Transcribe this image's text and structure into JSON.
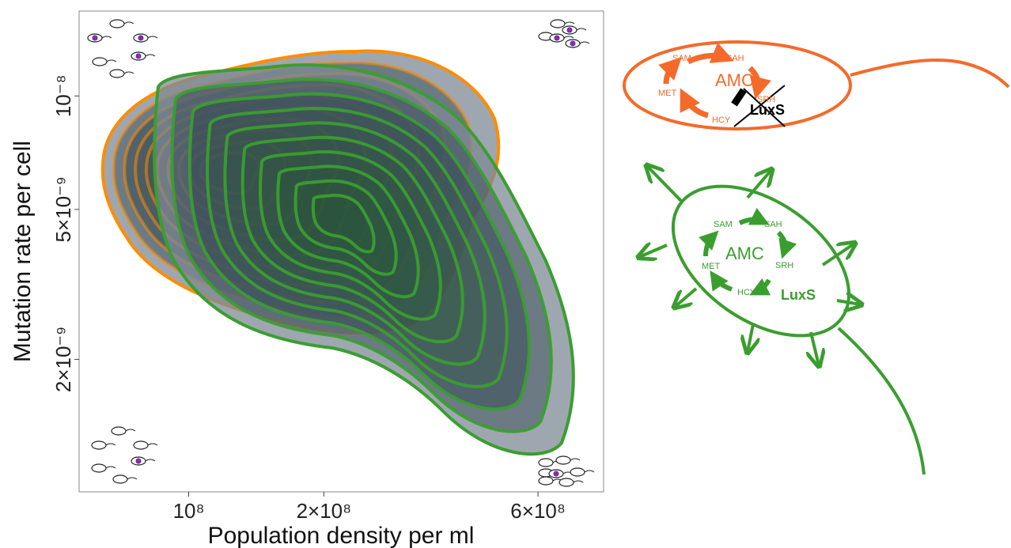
{
  "chart_data": {
    "type": "contour",
    "xlabel": "Population density per ml",
    "ylabel": "Mutation rate per cell",
    "xscale": "log",
    "yscale": "log",
    "xlim": [
      57000000.0,
      840000000.0
    ],
    "ylim": [
      8.9e-10,
      1.68e-08
    ],
    "xticks": [
      {
        "value": 100000000.0,
        "label": "10⁸"
      },
      {
        "value": 200000000.0,
        "label": "2×10⁸"
      },
      {
        "value": 600000000.0,
        "label": "6×10⁸"
      }
    ],
    "yticks": [
      {
        "value": 2e-09,
        "label": "2×10⁻⁹"
      },
      {
        "value": 5e-09,
        "label": "5×10⁻⁹"
      },
      {
        "value": 1e-08,
        "label": "10⁻⁸"
      }
    ],
    "colors": [
      "#ff8c00",
      "#3a9e2f"
    ]
  },
  "diagrams": [
    {
      "metabolites": [
        "SAM",
        "SAH",
        "SRH",
        "HCY",
        "MET"
      ],
      "cycle": "AMC",
      "enzyme": "LuxS",
      "color": "#f46a2b"
    },
    {
      "metabolites": [
        "SAM",
        "SAH",
        "SRH",
        "HCY",
        "MET"
      ],
      "cycle": "AMC",
      "enzyme": "LuxS",
      "color": "#3a9e2f"
    }
  ]
}
